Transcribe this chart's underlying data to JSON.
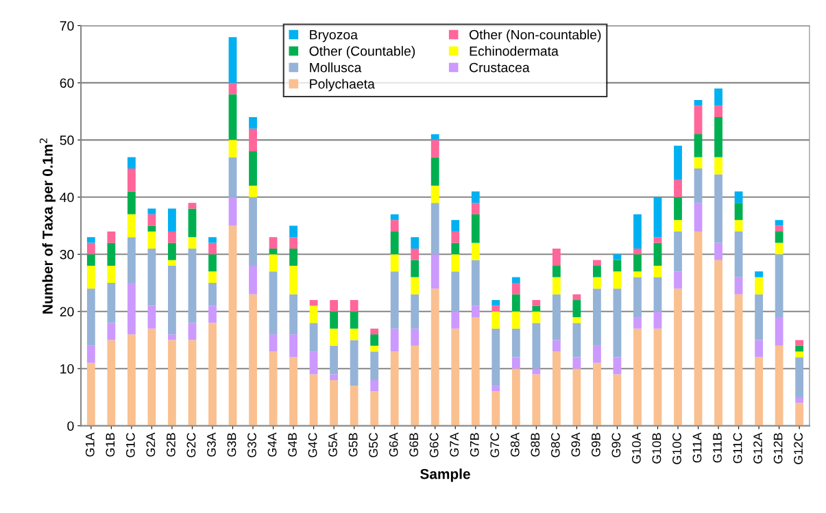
{
  "chart_data": {
    "type": "bar",
    "stacked": true,
    "xlabel": "Sample",
    "ylabel": "Number of Taxa per 0.1m$^{2}$",
    "categories": [
      "G1A",
      "G1B",
      "G1C",
      "G2A",
      "G2B",
      "G2C",
      "G3A",
      "G3B",
      "G3C",
      "G4A",
      "G4B",
      "G4C",
      "G5A",
      "G5B",
      "G5C",
      "G6A",
      "G6B",
      "G6C",
      "G7A",
      "G7B",
      "G7C",
      "G8A",
      "G8B",
      "G8C",
      "G9A",
      "G9B",
      "G9C",
      "G10A",
      "G10B",
      "G10C",
      "G11A",
      "G11B",
      "G11C",
      "G12A",
      "G12B",
      "G12C"
    ],
    "series": [
      {
        "name": "Polychaeta",
        "color": "#fac090",
        "values": [
          11,
          15,
          16,
          17,
          15,
          15,
          18,
          35,
          23,
          13,
          12,
          9,
          8,
          7,
          6,
          13,
          14,
          24,
          17,
          19,
          6,
          10,
          9,
          13,
          10,
          11,
          9,
          17,
          17,
          24,
          34,
          29,
          23,
          12,
          14,
          4
        ]
      },
      {
        "name": "Crustacea",
        "color": "#cc99ff",
        "values": [
          3,
          3,
          9,
          4,
          1,
          3,
          3,
          5,
          5,
          3,
          4,
          4,
          1,
          0,
          2,
          4,
          3,
          6,
          3,
          2,
          1,
          2,
          1,
          2,
          2,
          3,
          3,
          2,
          3,
          3,
          5,
          3,
          3,
          3,
          5,
          1
        ]
      },
      {
        "name": "Mollusca",
        "color": "#95b3d7",
        "values": [
          10,
          7,
          8,
          10,
          12,
          13,
          4,
          7,
          12,
          11,
          7,
          5,
          5,
          8,
          5,
          10,
          6,
          9,
          7,
          8,
          10,
          5,
          8,
          8,
          6,
          10,
          12,
          7,
          6,
          7,
          6,
          12,
          8,
          8,
          11,
          7
        ]
      },
      {
        "name": "Echinodermata",
        "color": "#ffff00",
        "values": [
          4,
          3,
          4,
          3,
          1,
          2,
          2,
          3,
          2,
          3,
          5,
          3,
          3,
          2,
          1,
          3,
          3,
          3,
          3,
          3,
          3,
          3,
          2,
          3,
          1,
          2,
          3,
          1,
          2,
          2,
          2,
          3,
          2,
          3,
          2,
          1
        ]
      },
      {
        "name": "Other (Countable)",
        "color": "#00b050",
        "values": [
          2,
          4,
          4,
          1,
          3,
          5,
          3,
          8,
          6,
          1,
          3,
          0,
          3,
          3,
          2,
          4,
          3,
          5,
          2,
          5,
          0,
          3,
          1,
          2,
          3,
          2,
          2,
          3,
          4,
          4,
          4,
          7,
          3,
          0,
          2,
          1
        ]
      },
      {
        "name": "Other (Non-countable)",
        "color": "#ff6699",
        "values": [
          2,
          2,
          4,
          2,
          2,
          1,
          2,
          2,
          4,
          2,
          2,
          1,
          2,
          2,
          1,
          2,
          2,
          3,
          2,
          2,
          1,
          2,
          1,
          3,
          1,
          1,
          0,
          1,
          1,
          3,
          5,
          2,
          0,
          0,
          1,
          1
        ]
      },
      {
        "name": "Bryozoa",
        "color": "#00b0f0",
        "values": [
          1,
          0,
          2,
          1,
          4,
          0,
          1,
          8,
          2,
          0,
          2,
          0,
          0,
          0,
          0,
          1,
          2,
          1,
          2,
          2,
          1,
          1,
          0,
          0,
          0,
          0,
          1,
          6,
          7,
          6,
          1,
          3,
          2,
          1,
          1,
          0
        ]
      }
    ],
    "ylim": [
      0,
      70
    ],
    "yticks": [
      0,
      10,
      20,
      30,
      40,
      50,
      60,
      70
    ],
    "grid": "y",
    "legend": "top"
  }
}
